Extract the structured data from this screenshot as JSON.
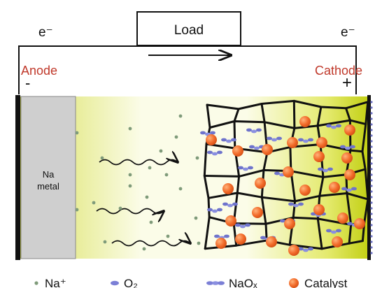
{
  "circuit": {
    "electron_left": "e⁻",
    "electron_right": "e⁻",
    "load_label": "Load"
  },
  "electrodes": {
    "anode_label": "Anode",
    "anode_sign": "-",
    "cathode_label": "Cathode",
    "cathode_sign": "+",
    "metal_line1": "Na",
    "metal_line2": "metal"
  },
  "legend": {
    "na_ion": "Na⁺",
    "oxygen": "O₂",
    "sodium_oxide": "NaOₓ",
    "catalyst": "Catalyst"
  },
  "colors": {
    "electrode_label": "#c0392b",
    "catalyst": "#f26b2a",
    "oxygen": "#7b7fd6",
    "ion": "#7f9b7a",
    "electrolyte_light": "#fbfce8",
    "electrolyte_dark": "#c8d21a",
    "metal": "#cfcfcf"
  }
}
